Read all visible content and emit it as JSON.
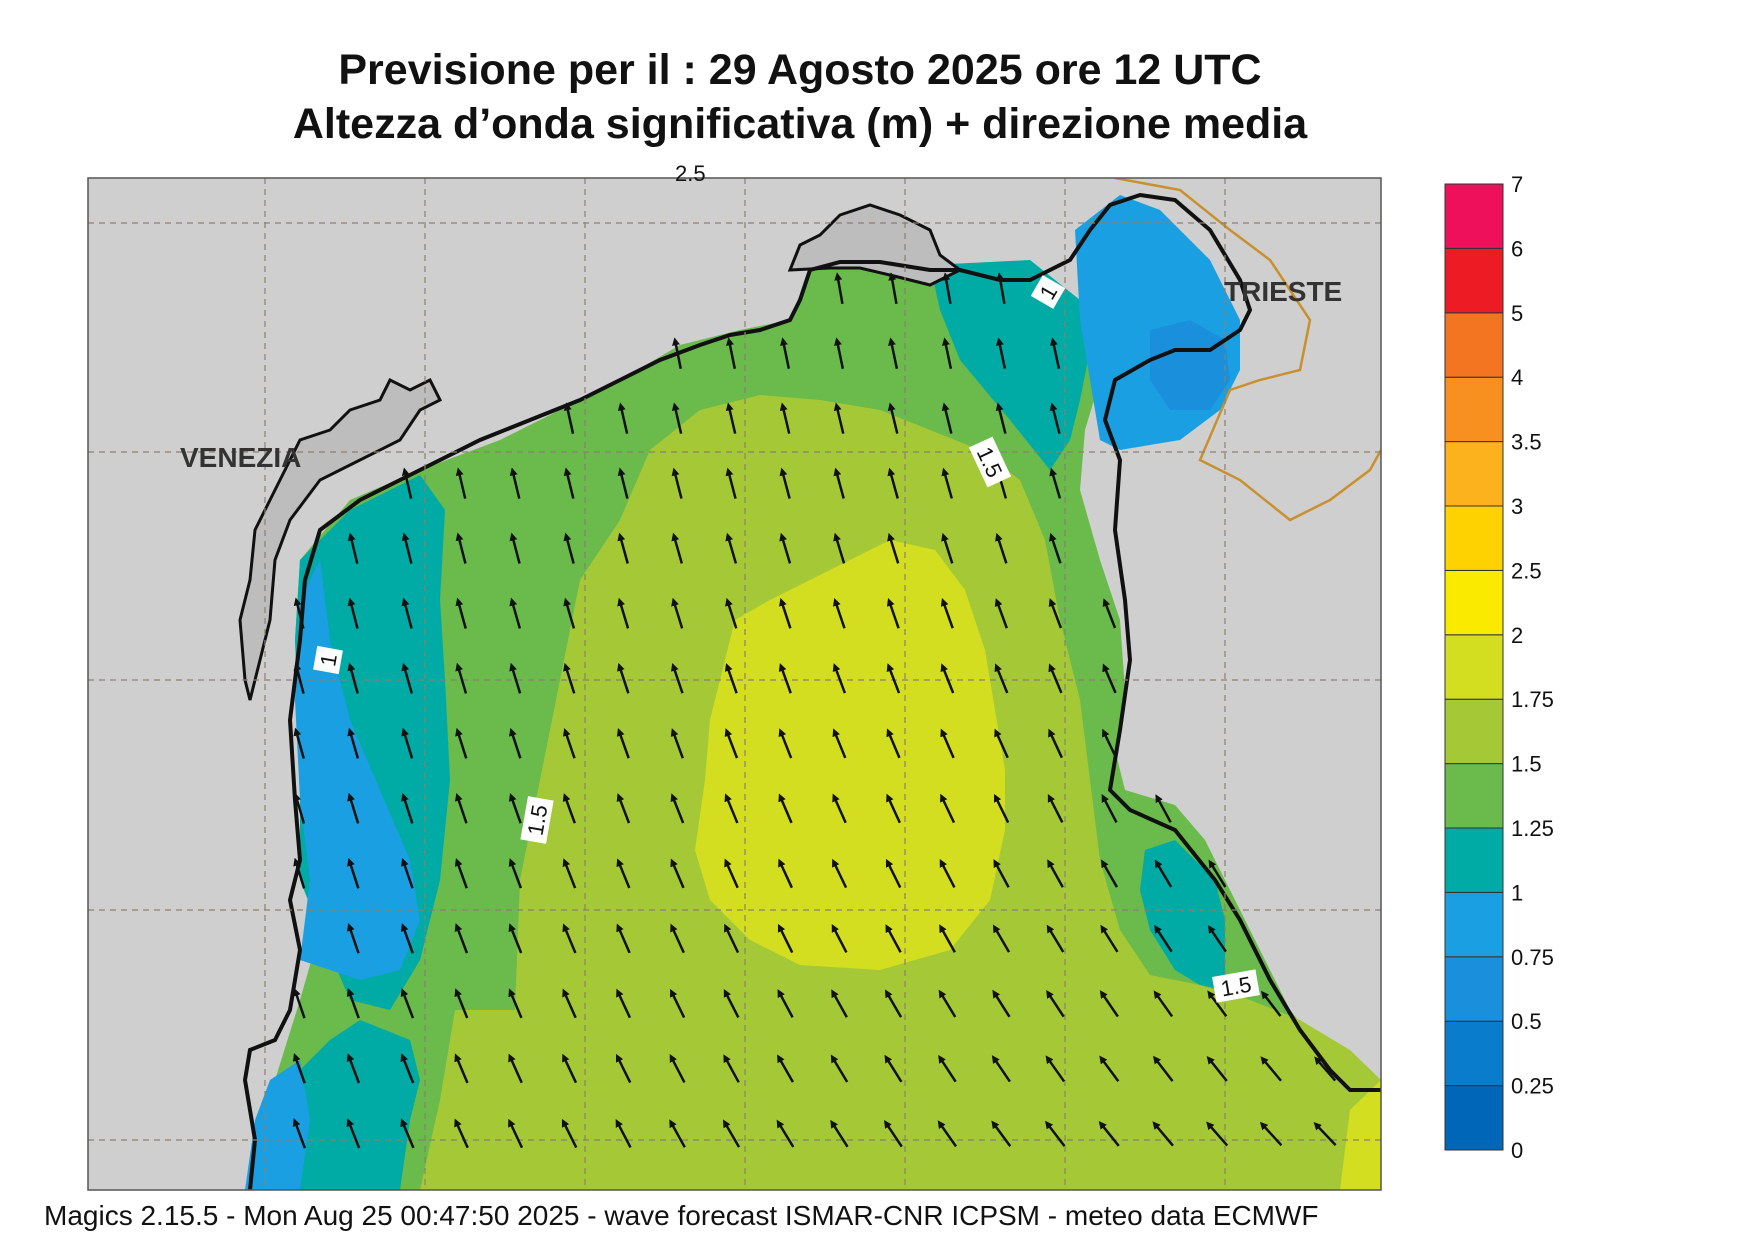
{
  "header": {
    "title_line1": "Previsione per il  :  29   Agosto  2025   ore 12 UTC",
    "title_line2": "Altezza d’onda significativa (m) + direzione media"
  },
  "map": {
    "place_labels": [
      "VENEZIA",
      "TRIESTE"
    ],
    "contour_labels": [
      "1",
      "1",
      "1.5",
      "1.5",
      "1.5"
    ],
    "top_edge_label": "2.5",
    "land_color": "#cfcfcf",
    "coast_color": "#111111",
    "border_color": "#c8902e",
    "arrow_direction": "north / north-northwest (mean wave direction)"
  },
  "legend": {
    "levels": [
      "0",
      "0.25",
      "0.5",
      "0.75",
      "1",
      "1.25",
      "1.5",
      "1.75",
      "2",
      "2.5",
      "3",
      "3.5",
      "4",
      "5",
      "6",
      "7"
    ],
    "colors": [
      "#0066b8",
      "#0a7ccc",
      "#1a8fdc",
      "#1aa0e2",
      "#00aaa5",
      "#6aba4c",
      "#a5c936",
      "#d4de20",
      "#faea00",
      "#fdd200",
      "#fcb21c",
      "#f7901e",
      "#f37421",
      "#ed1c24",
      "#ee105a"
    ]
  },
  "footer": {
    "text": "Magics 2.15.5 - Mon Aug 25 00:47:50 2025 - wave forecast  ISMAR-CNR  ICPSM - meteo data   ECMWF"
  }
}
